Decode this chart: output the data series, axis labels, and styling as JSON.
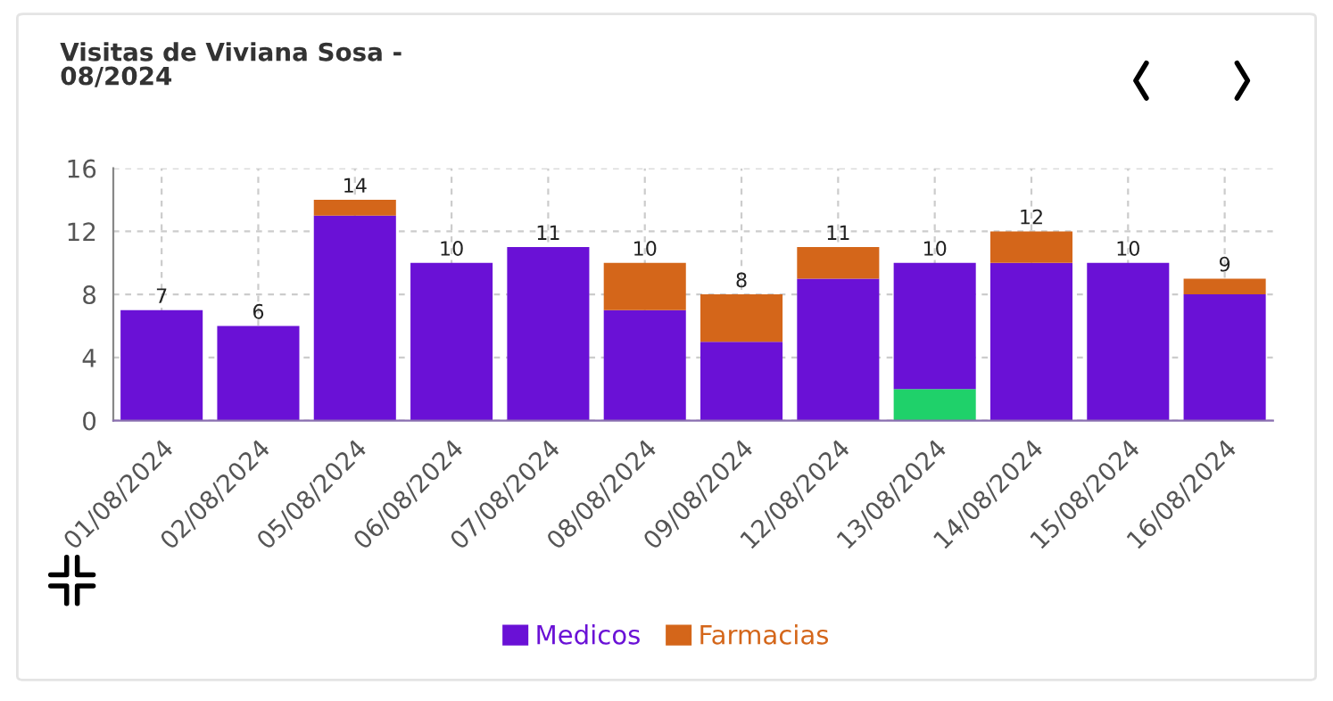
{
  "chart_data": {
    "type": "bar",
    "title": "Visitas de Viviana Sosa -\n08/2024",
    "categories": [
      "01/08/2024",
      "02/08/2024",
      "05/08/2024",
      "06/08/2024",
      "07/08/2024",
      "08/08/2024",
      "09/08/2024",
      "12/08/2024",
      "13/08/2024",
      "14/08/2024",
      "15/08/2024",
      "16/08/2024"
    ],
    "series": [
      {
        "color": "#1fd16a",
        "values": [
          0,
          0,
          0,
          0,
          0,
          0,
          0,
          0,
          2,
          0,
          0,
          0
        ]
      },
      {
        "name": "Medicos",
        "color": "#6a11d6",
        "values": [
          7,
          6,
          13,
          10,
          11,
          7,
          5,
          9,
          8,
          10,
          10,
          8
        ]
      },
      {
        "name": "Farmacias",
        "color": "#d4661a",
        "values": [
          0,
          0,
          1,
          0,
          0,
          3,
          3,
          2,
          0,
          2,
          0,
          1
        ]
      }
    ],
    "stacked": true,
    "totals": [
      "7",
      "6",
      "14",
      "10",
      "11",
      "10",
      "8",
      "11",
      "10",
      "12",
      "10",
      "9"
    ],
    "ylim": [
      0,
      16
    ],
    "yticks": [
      0,
      4,
      8,
      12,
      16
    ],
    "grid": true,
    "legend": "bottom"
  }
}
